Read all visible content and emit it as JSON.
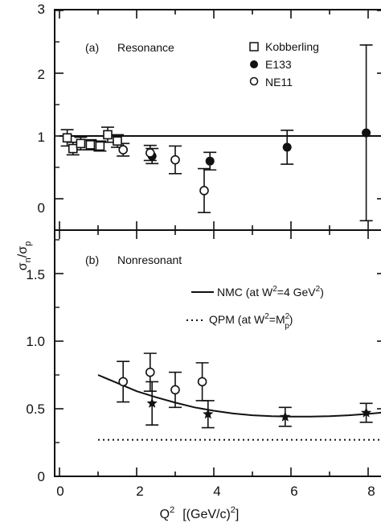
{
  "chart_data": [
    {
      "type": "scatter",
      "panel_label": "(a)",
      "panel_title": "Resonance",
      "ylim": [
        0,
        3
      ],
      "xlim": [
        0,
        9
      ],
      "x_ticks": [
        0,
        2,
        4,
        6,
        8
      ],
      "y_ticks": [
        "0",
        "1",
        "2",
        "3"
      ],
      "legend": {
        "placement": "top-right",
        "entries": [
          {
            "label": "Kobberling",
            "marker": "open-square"
          },
          {
            "label": "E133",
            "marker": "filled-circle"
          },
          {
            "label": "NE11",
            "marker": "open-circle"
          }
        ]
      },
      "reference_line": {
        "y": 1.0
      },
      "series": [
        {
          "name": "Kobberling",
          "marker": "open-square",
          "points": [
            {
              "x": 0.2,
              "y": 0.97,
              "err": 0.13
            },
            {
              "x": 0.35,
              "y": 0.8,
              "err": 0.1
            },
            {
              "x": 0.55,
              "y": 0.88,
              "err": 0.1
            },
            {
              "x": 0.8,
              "y": 0.86,
              "err": 0.08
            },
            {
              "x": 1.05,
              "y": 0.84,
              "err": 0.08
            },
            {
              "x": 1.25,
              "y": 1.02,
              "err": 0.12
            },
            {
              "x": 1.5,
              "y": 0.92,
              "err": 0.1
            }
          ]
        },
        {
          "name": "E133",
          "marker": "filled-circle",
          "points": [
            {
              "x": 2.4,
              "y": 0.68,
              "err": 0.12
            },
            {
              "x": 3.9,
              "y": 0.6,
              "err": 0.14
            },
            {
              "x": 5.9,
              "y": 0.82,
              "err": 0.27
            },
            {
              "x": 7.95,
              "y": 1.05,
              "err": 1.4
            }
          ]
        },
        {
          "name": "NE11",
          "marker": "open-circle",
          "points": [
            {
              "x": 1.65,
              "y": 0.78,
              "err": 0.1
            },
            {
              "x": 2.35,
              "y": 0.73,
              "err": 0.12
            },
            {
              "x": 3.0,
              "y": 0.62,
              "err": 0.22
            },
            {
              "x": 3.75,
              "y": 0.13,
              "err": 0.35
            }
          ]
        }
      ]
    },
    {
      "type": "scatter",
      "panel_label": "(b)",
      "panel_title": "Nonresonant",
      "ylim": [
        0,
        1.8
      ],
      "xlim": [
        0,
        9
      ],
      "x_ticks": [
        "0",
        "2",
        "4",
        "6",
        "8"
      ],
      "y_ticks": [
        "0",
        "0.5",
        "1.0",
        "1.5"
      ],
      "xlabel": {
        "base": "Q",
        "sup": "2",
        "units": "[(GeV/c)",
        "units_sup": "2",
        "units_end": "]"
      },
      "ylabel": {
        "main": "σ",
        "sub_n": "n",
        "sep": "/σ",
        "sub_p": "p"
      },
      "legend": {
        "placement": "top-right",
        "entries": [
          {
            "line": "solid",
            "text_a": "NMC (at W",
            "sup": "2",
            "text_b": "=4 GeV",
            "sup2": "2",
            "text_c": ")"
          },
          {
            "line": "dotted",
            "text_a": "QPM (at W",
            "sup": "2",
            "text_b": "=M",
            "sup2": "2",
            "sub2": "p",
            "text_c": ")"
          }
        ]
      },
      "curves": [
        {
          "style": "solid",
          "x": [
            1.0,
            1.5,
            2.0,
            2.5,
            3.0,
            3.5,
            4.0,
            4.5,
            5.0,
            5.5,
            6.0,
            6.5,
            7.0,
            7.5,
            8.0,
            8.5,
            9.0
          ],
          "y": [
            0.75,
            0.69,
            0.63,
            0.585,
            0.545,
            0.51,
            0.485,
            0.465,
            0.452,
            0.445,
            0.442,
            0.442,
            0.445,
            0.452,
            0.462,
            0.475,
            0.49
          ]
        },
        {
          "style": "dotted",
          "x": [
            1.0,
            9.0
          ],
          "y": [
            0.27,
            0.27
          ]
        }
      ],
      "series": [
        {
          "marker": "open-circle",
          "points": [
            {
              "x": 1.65,
              "y": 0.7,
              "err": 0.15
            },
            {
              "x": 2.35,
              "y": 0.77,
              "err": 0.14
            },
            {
              "x": 3.0,
              "y": 0.64,
              "err": 0.13
            },
            {
              "x": 3.7,
              "y": 0.7,
              "err": 0.14
            }
          ]
        },
        {
          "marker": "filled-star",
          "points": [
            {
              "x": 2.4,
              "y": 0.54,
              "err": 0.16
            },
            {
              "x": 3.85,
              "y": 0.46,
              "err": 0.1
            },
            {
              "x": 5.85,
              "y": 0.44,
              "err": 0.07
            },
            {
              "x": 7.95,
              "y": 0.47,
              "err": 0.07
            }
          ]
        }
      ]
    }
  ]
}
